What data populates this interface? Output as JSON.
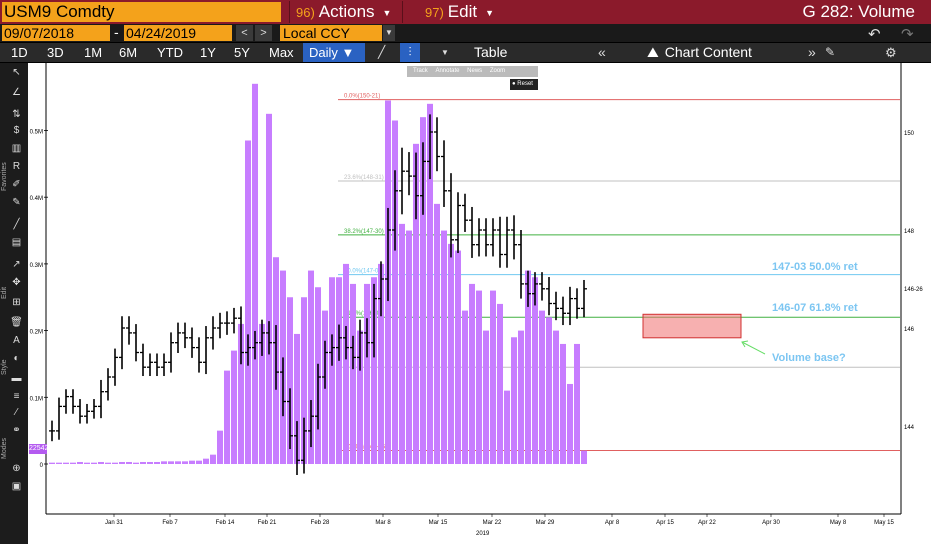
{
  "topbar": {
    "ticker": "USM9 Comdty",
    "actions_num": "96)",
    "actions_label": "Actions",
    "edit_num": "97)",
    "edit_label": "Edit",
    "title": "G 282: Volume"
  },
  "range": {
    "start": "09/07/2018",
    "end": "04/24/2019",
    "currency": "Local CCY"
  },
  "periods": [
    "1D",
    "3D",
    "1M",
    "6M",
    "YTD",
    "1Y",
    "5Y",
    "Max"
  ],
  "toolbar": {
    "interval": "Daily ▼",
    "table_label": "Table",
    "chart_content_label": "Chart Content"
  },
  "zoom_tools": {
    "track": "Track",
    "annotate": "Annotate",
    "news": "News",
    "zoom": "Zoom",
    "reset": "Reset"
  },
  "left_tools": {
    "favorites_label": "Favorites",
    "edit_label": "Edit",
    "style_label": "Style",
    "modes_label": "Modes"
  },
  "volume_badge": "22542",
  "chart_data": {
    "type": "bar",
    "x_tick_labels": [
      "Jan 31",
      "Feb 7",
      "Feb 14",
      "Feb 21",
      "Feb 28",
      "Mar 8",
      "Mar 15",
      "Mar 22",
      "Mar 29",
      "Apr 8",
      "Apr 15",
      "Apr 22",
      "Apr 30",
      "May 8",
      "May 15"
    ],
    "x_year_label": "2019",
    "volume_axis_ticks": [
      "0.5M",
      "0.4M",
      "0.3M",
      "0.2M",
      "0.1M",
      "0"
    ],
    "price_axis_ticks": [
      "150",
      "148",
      "146-26",
      "146",
      "144"
    ],
    "volume_series": {
      "name": "Volume",
      "color": "#c77dff",
      "values_m": [
        0.002,
        0.002,
        0.002,
        0.002,
        0.003,
        0.002,
        0.002,
        0.003,
        0.002,
        0.002,
        0.003,
        0.003,
        0.002,
        0.003,
        0.003,
        0.003,
        0.004,
        0.004,
        0.004,
        0.004,
        0.005,
        0.005,
        0.008,
        0.014,
        0.05,
        0.14,
        0.17,
        0.21,
        0.485,
        0.57,
        0.21,
        0.525,
        0.31,
        0.29,
        0.25,
        0.195,
        0.25,
        0.29,
        0.265,
        0.23,
        0.28,
        0.28,
        0.3,
        0.27,
        0.2,
        0.27,
        0.28,
        0.3,
        0.545,
        0.515,
        0.36,
        0.35,
        0.48,
        0.52,
        0.54,
        0.39,
        0.35,
        0.33,
        0.32,
        0.23,
        0.27,
        0.26,
        0.2,
        0.26,
        0.24,
        0.11,
        0.19,
        0.2,
        0.29,
        0.28,
        0.23,
        0.22,
        0.2,
        0.18,
        0.12,
        0.18,
        0.02
      ]
    },
    "price_series": {
      "name": "USM9 Comdty",
      "style": "ohlc",
      "color": "#000000",
      "closes": [
        143.9,
        144.4,
        144.6,
        144.4,
        144.2,
        144.3,
        144.4,
        144.7,
        145.0,
        145.4,
        146.0,
        145.9,
        145.5,
        145.2,
        145.3,
        145.2,
        145.3,
        145.7,
        145.9,
        145.8,
        145.6,
        145.3,
        145.8,
        146.0,
        146.1,
        146.1,
        146.2,
        145.5,
        145.6,
        145.7,
        145.9,
        145.7,
        145.1,
        144.5,
        143.8,
        143.3,
        143.9,
        144.2,
        145.0,
        145.5,
        145.6,
        145.8,
        145.6,
        145.4,
        145.9,
        145.7,
        146.6,
        147.0,
        148.0,
        148.8,
        149.2,
        149.1,
        148.7,
        149.4,
        150.0,
        149.5,
        148.8,
        147.8,
        148.5,
        148.2,
        147.7,
        148.0,
        147.7,
        148.0,
        147.5,
        148.0,
        147.7,
        146.9,
        146.7,
        146.9,
        146.8,
        146.5,
        146.4,
        146.3,
        146.6,
        146.4,
        146.8
      ],
      "ranges": [
        0.7,
        0.6,
        0.5,
        0.5,
        0.5,
        0.5,
        0.5,
        0.8,
        0.6,
        0.6,
        0.8,
        0.8,
        0.6,
        0.6,
        0.6,
        0.6,
        0.6,
        0.7,
        0.7,
        0.7,
        0.7,
        0.7,
        0.8,
        0.8,
        0.7,
        0.8,
        0.7,
        0.8,
        0.9,
        0.8,
        0.9,
        0.8,
        1.2,
        1.0,
        0.9,
        1.0,
        0.9,
        1.1,
        0.9,
        0.8,
        0.9,
        0.9,
        0.8,
        0.8,
        0.9,
        1.0,
        1.0,
        1.2,
        1.5,
        1.4,
        1.6,
        1.3,
        1.6,
        1.3,
        1.2,
        1.0,
        1.1,
        1.2,
        0.9,
        0.8,
        0.9,
        0.8,
        0.8,
        0.8,
        0.9,
        0.9,
        1.0,
        1.0,
        0.9,
        0.8,
        0.8,
        0.8,
        0.8,
        0.8,
        0.8,
        0.7,
        0.6
      ]
    },
    "fibonacci": [
      {
        "label": "0.0%(150-21)",
        "price": 150.66,
        "color": "#e06060"
      },
      {
        "label": "23.6%(148-31)",
        "price": 149.0,
        "color": "#c0c0c0"
      },
      {
        "label": "38.2%(147-30)",
        "price": 147.9,
        "color": "#40b040"
      },
      {
        "label": "50.0%(147-03)",
        "price": 147.09,
        "color": "#70c8f0"
      },
      {
        "label": "61.8%(146-07)",
        "price": 146.22,
        "color": "#40b040"
      },
      {
        "label": "",
        "price": 145.2,
        "color": "#c0c0c0"
      },
      {
        "label": "100.0%(143-16)",
        "price": 143.5,
        "color": "#e06060"
      }
    ],
    "annotations": {
      "ret50": "147-03 50.0% ret",
      "ret618": "146-07 61.8% ret",
      "volume_base": "Volume base?"
    },
    "highlight_box": {
      "price_top": 146.28,
      "price_bottom": 145.8,
      "color": "#f07070"
    }
  }
}
